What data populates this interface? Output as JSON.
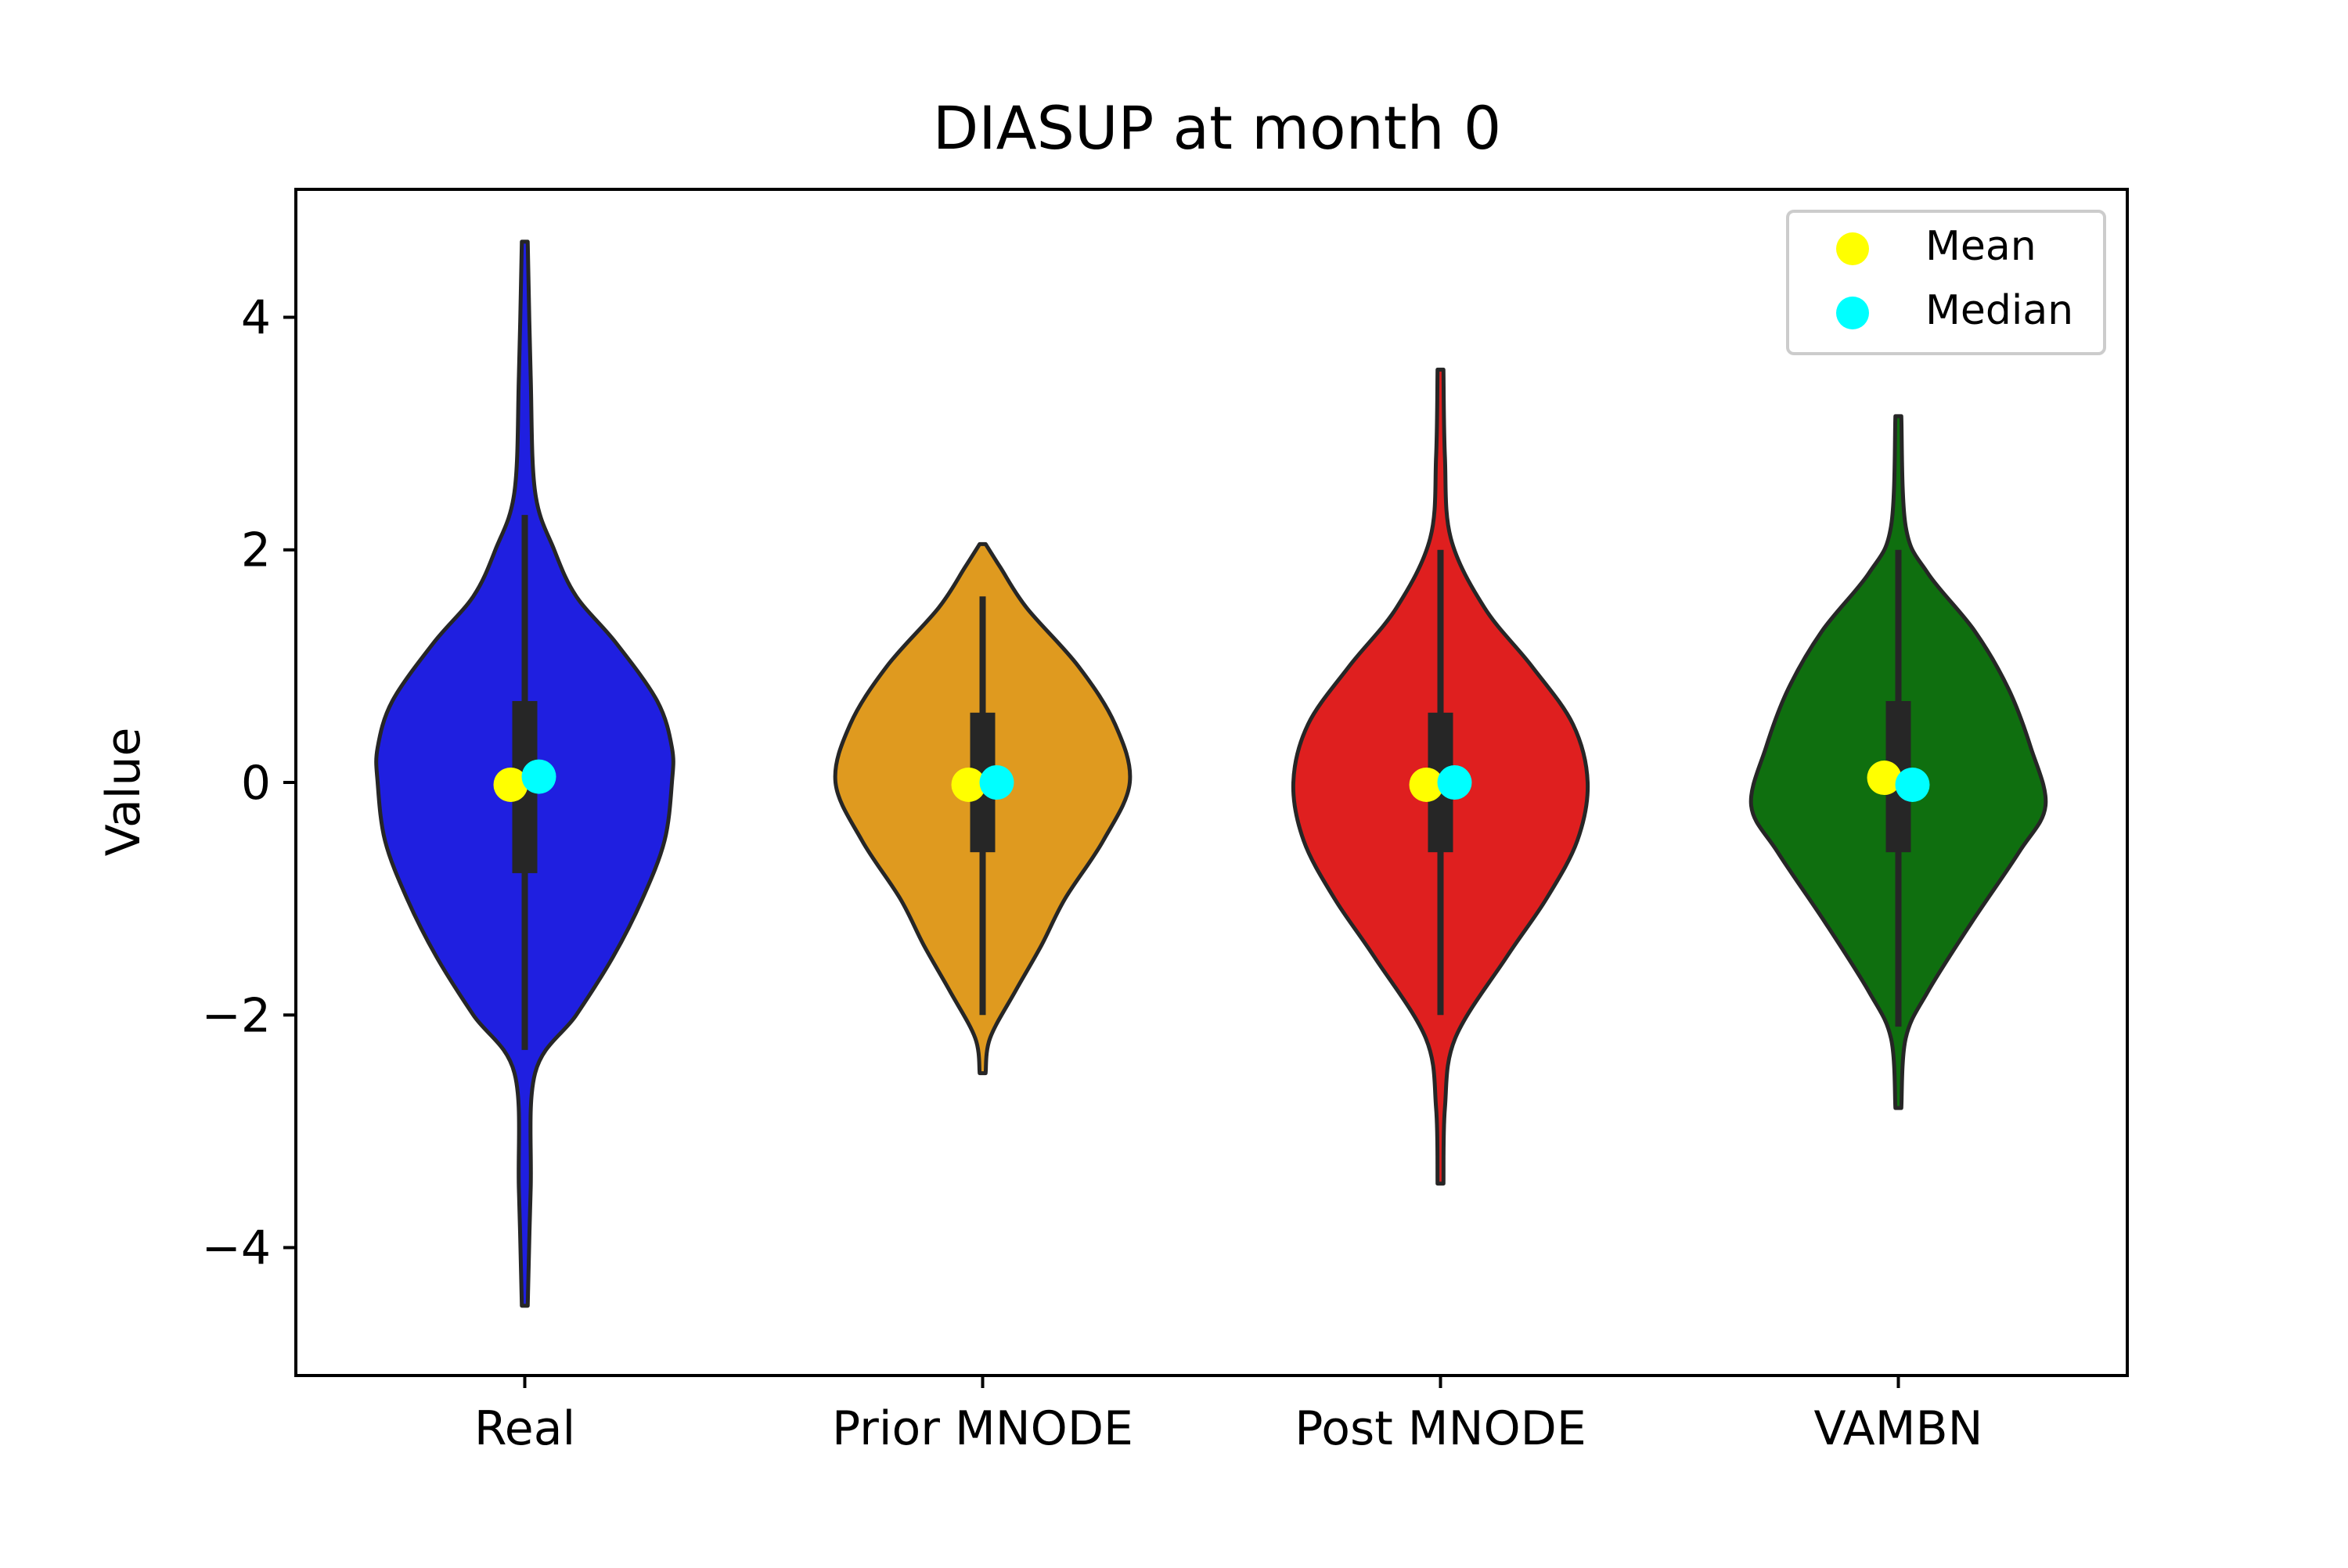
{
  "chart_data": {
    "type": "violin",
    "title": "DIASUP at month 0",
    "xlabel": "",
    "ylabel": "Value",
    "ylim": [
      -5.1,
      5.1
    ],
    "yticks": [
      4,
      2,
      0,
      -2,
      -4
    ],
    "ytick_labels": [
      "4",
      "2",
      "0",
      "−2",
      "−4"
    ],
    "categories": [
      "Real",
      "Prior MNODE",
      "Post MNODE",
      "VAMBN"
    ],
    "colors": [
      "#1f1fe0",
      "#df9a1f",
      "#df1f1f",
      "#0f6f0f"
    ],
    "grid": false,
    "legend": {
      "position": "top-right",
      "entries": [
        {
          "label": "Mean",
          "color": "#ffff00"
        },
        {
          "label": "Median",
          "color": "#00ffff"
        }
      ]
    },
    "series": [
      {
        "category": "Real",
        "min": -4.5,
        "max": 4.65,
        "q1": -0.78,
        "q3": 0.7,
        "whisker_low": -2.3,
        "whisker_high": 2.3,
        "mean": -0.02,
        "median": 0.05,
        "profile": [
          [
            -4.5,
            0.02
          ],
          [
            -3.5,
            0.04
          ],
          [
            -2.5,
            0.07
          ],
          [
            -2.0,
            0.35
          ],
          [
            -1.5,
            0.6
          ],
          [
            -1.0,
            0.8
          ],
          [
            -0.5,
            0.95
          ],
          [
            0.0,
            1.0
          ],
          [
            0.3,
            1.0
          ],
          [
            0.7,
            0.9
          ],
          [
            1.2,
            0.62
          ],
          [
            1.6,
            0.35
          ],
          [
            2.0,
            0.2
          ],
          [
            2.5,
            0.07
          ],
          [
            3.5,
            0.04
          ],
          [
            4.65,
            0.02
          ]
        ]
      },
      {
        "category": "Prior MNODE",
        "min": -2.5,
        "max": 2.05,
        "q1": -0.6,
        "q3": 0.6,
        "whisker_low": -2.0,
        "whisker_high": 1.6,
        "mean": -0.02,
        "median": 0.0,
        "profile": [
          [
            -2.5,
            0.02
          ],
          [
            -2.2,
            0.05
          ],
          [
            -1.8,
            0.22
          ],
          [
            -1.4,
            0.4
          ],
          [
            -1.0,
            0.56
          ],
          [
            -0.5,
            0.82
          ],
          [
            0.0,
            1.0
          ],
          [
            0.5,
            0.9
          ],
          [
            1.0,
            0.65
          ],
          [
            1.5,
            0.3
          ],
          [
            1.85,
            0.12
          ],
          [
            2.05,
            0.02
          ]
        ]
      },
      {
        "category": "Post MNODE",
        "min": -3.45,
        "max": 3.55,
        "q1": -0.6,
        "q3": 0.6,
        "whisker_low": -2.0,
        "whisker_high": 2.0,
        "mean": -0.02,
        "median": 0.0,
        "profile": [
          [
            -3.45,
            0.02
          ],
          [
            -2.8,
            0.03
          ],
          [
            -2.2,
            0.1
          ],
          [
            -1.5,
            0.45
          ],
          [
            -1.0,
            0.72
          ],
          [
            -0.5,
            0.93
          ],
          [
            0.0,
            1.0
          ],
          [
            0.5,
            0.9
          ],
          [
            1.0,
            0.62
          ],
          [
            1.5,
            0.3
          ],
          [
            2.1,
            0.07
          ],
          [
            2.8,
            0.03
          ],
          [
            3.55,
            0.02
          ]
        ]
      },
      {
        "category": "VAMBN",
        "min": -2.8,
        "max": 3.15,
        "q1": -0.6,
        "q3": 0.7,
        "whisker_low": -2.1,
        "whisker_high": 2.0,
        "mean": 0.04,
        "median": -0.02,
        "profile": [
          [
            -2.8,
            0.02
          ],
          [
            -2.2,
            0.05
          ],
          [
            -1.8,
            0.2
          ],
          [
            -1.2,
            0.5
          ],
          [
            -0.6,
            0.82
          ],
          [
            -0.2,
            1.0
          ],
          [
            0.3,
            0.9
          ],
          [
            0.8,
            0.75
          ],
          [
            1.3,
            0.52
          ],
          [
            1.8,
            0.2
          ],
          [
            2.2,
            0.05
          ],
          [
            3.15,
            0.02
          ]
        ]
      }
    ]
  }
}
